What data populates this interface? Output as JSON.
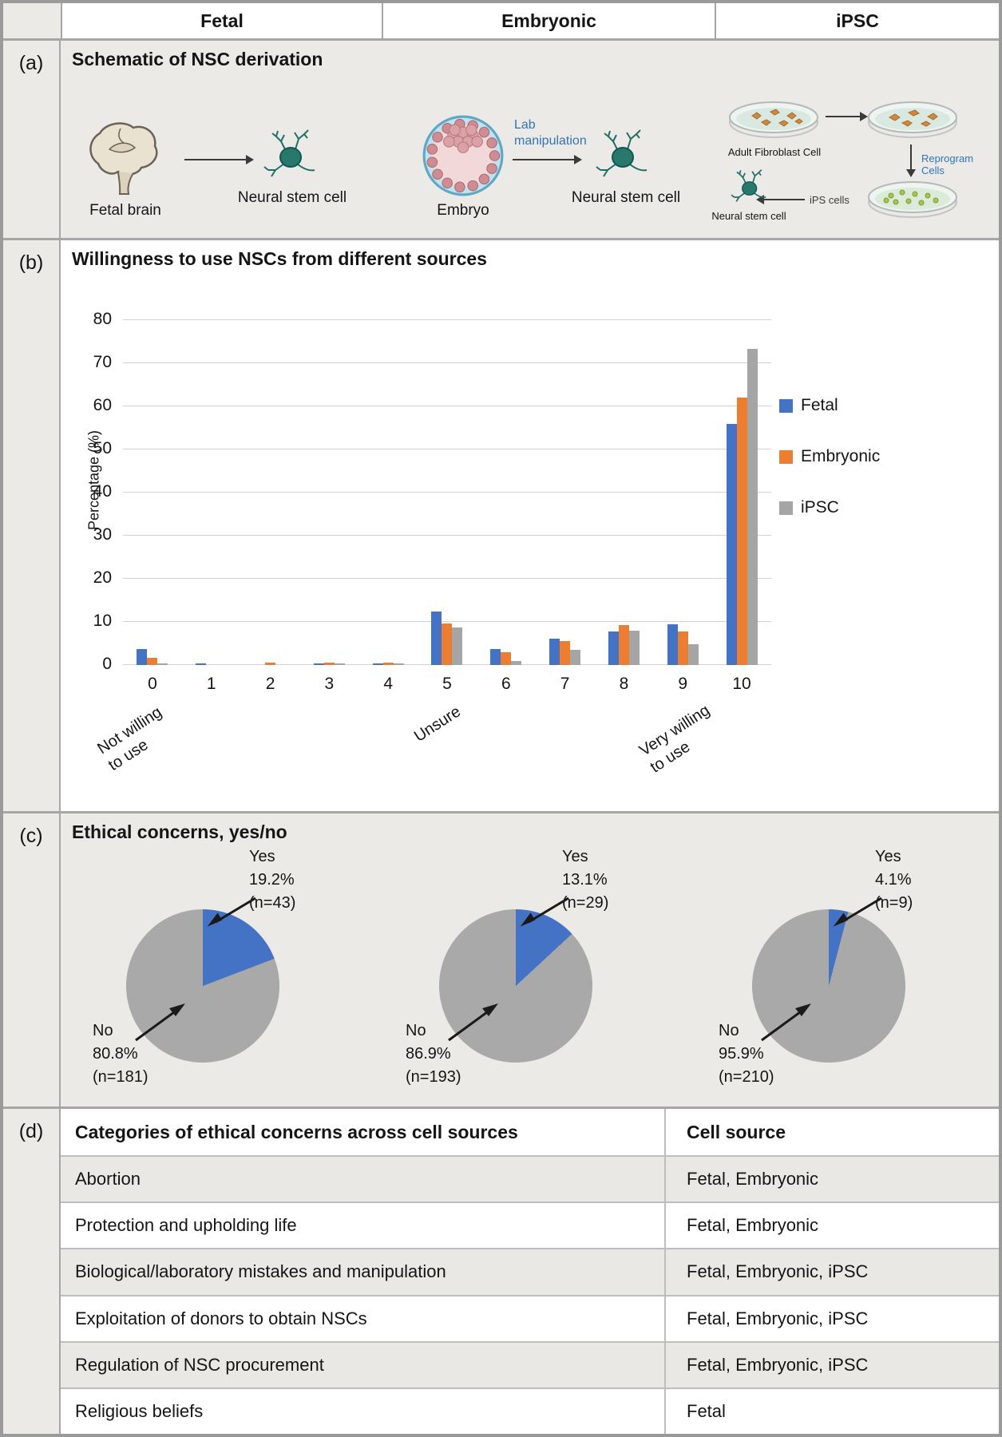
{
  "header": {
    "columns": [
      "Fetal",
      "Embryonic",
      "iPSC"
    ]
  },
  "panel_a": {
    "label": "(a)",
    "title": "Schematic of NSC derivation",
    "fetal": {
      "source_label": "Fetal brain",
      "result_label": "Neural stem cell"
    },
    "embryonic": {
      "source_label": "Embryo",
      "arrow_label": "Lab\nmanipulation",
      "result_label": "Neural stem cell"
    },
    "ipsc": {
      "dish1_label": "Adult Fibroblast Cell",
      "down_arrow_label": "Reprogram Cells",
      "ips_dish_label": "iPS cells",
      "result_label": "Neural stem cell"
    }
  },
  "panel_b": {
    "label": "(b)",
    "title": "Willingness to use NSCs from different sources"
  },
  "panel_c": {
    "label": "(c)",
    "title": "Ethical concerns, yes/no"
  },
  "panel_d": {
    "label": "(d)",
    "table": {
      "headers": [
        "Categories of ethical concerns across cell sources",
        "Cell source"
      ],
      "rows": [
        {
          "category": "Abortion",
          "cell_source": "Fetal, Embryonic"
        },
        {
          "category": "Protection and upholding life",
          "cell_source": "Fetal, Embryonic"
        },
        {
          "category": "Biological/laboratory mistakes and manipulation",
          "cell_source": "Fetal, Embryonic, iPSC"
        },
        {
          "category": "Exploitation of donors to obtain NSCs",
          "cell_source": "Fetal, Embryonic, iPSC"
        },
        {
          "category": "Regulation of NSC procurement",
          "cell_source": "Fetal, Embryonic, iPSC"
        },
        {
          "category": "Religious beliefs",
          "cell_source": "Fetal"
        }
      ]
    }
  },
  "colors": {
    "fetal_blue": "#4472C4",
    "embryonic_orange": "#ED7D31",
    "ipsc_gray": "#A5A5A5",
    "pie_no_gray": "#A9A9A9",
    "schematic_blue_text": "#2E75B6"
  },
  "chart_data": [
    {
      "type": "bar",
      "title": "Willingness to use NSCs from different sources",
      "xlabel": "",
      "ylabel": "Percentage (%)",
      "ylim": [
        0,
        80
      ],
      "ytick_step": 10,
      "grid": true,
      "legend_position": "right",
      "categories": [
        "0",
        "1",
        "2",
        "3",
        "4",
        "5",
        "6",
        "7",
        "8",
        "9",
        "10"
      ],
      "x_axis_annotations": [
        {
          "at_category": "0",
          "label": "Not willing\nto use"
        },
        {
          "at_category": "5",
          "label": "Unsure"
        },
        {
          "at_category": "10",
          "label": "Very willing\nto use"
        }
      ],
      "series": [
        {
          "name": "Fetal",
          "color": "#4472C4",
          "values": [
            3.7,
            0.4,
            0,
            0.3,
            0.3,
            12.5,
            3.7,
            6.2,
            7.8,
            9.5,
            55.9
          ]
        },
        {
          "name": "Embryonic",
          "color": "#ED7D31",
          "values": [
            1.7,
            0,
            0.5,
            0.5,
            0.5,
            9.6,
            3.0,
            5.5,
            9.2,
            7.8,
            62.1
          ]
        },
        {
          "name": "iPSC",
          "color": "#A5A5A5",
          "values": [
            0.4,
            0,
            0,
            0.3,
            0.3,
            8.7,
            0.9,
            3.6,
            8.0,
            4.9,
            73.4
          ]
        }
      ]
    },
    {
      "type": "pie",
      "title": "Ethical concerns, yes/no",
      "pies": [
        {
          "source": "Fetal",
          "slices": [
            {
              "label": "Yes",
              "pct": 19.2,
              "n": 43,
              "color": "#4472C4"
            },
            {
              "label": "No",
              "pct": 80.8,
              "n": 181,
              "color": "#A9A9A9"
            }
          ]
        },
        {
          "source": "Embryonic",
          "slices": [
            {
              "label": "Yes",
              "pct": 13.1,
              "n": 29,
              "color": "#4472C4"
            },
            {
              "label": "No",
              "pct": 86.9,
              "n": 193,
              "color": "#A9A9A9"
            }
          ]
        },
        {
          "source": "iPSC",
          "slices": [
            {
              "label": "Yes",
              "pct": 4.1,
              "n": 9,
              "color": "#4472C4"
            },
            {
              "label": "No",
              "pct": 95.9,
              "n": 210,
              "color": "#A9A9A9"
            }
          ]
        }
      ]
    }
  ]
}
